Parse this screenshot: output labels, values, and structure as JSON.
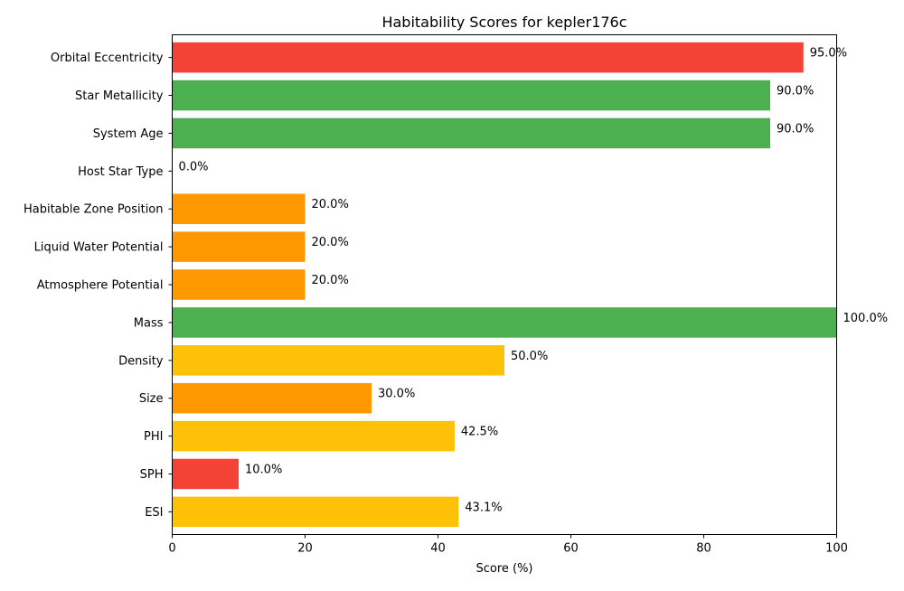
{
  "chart_data": {
    "type": "bar",
    "orientation": "horizontal",
    "title": "Habitability Scores for kepler176c",
    "xlabel": "Score (%)",
    "ylabel": "",
    "xlim": [
      0,
      100
    ],
    "xticks": [
      0,
      20,
      40,
      60,
      80,
      100
    ],
    "grid": false,
    "categories": [
      "ESI",
      "SPH",
      "PHI",
      "Size",
      "Density",
      "Mass",
      "Atmosphere Potential",
      "Liquid Water Potential",
      "Habitable Zone Position",
      "Host Star Type",
      "System Age",
      "Star Metallicity",
      "Orbital Eccentricity"
    ],
    "values": [
      43.1,
      10.0,
      42.5,
      30.0,
      50.0,
      100.0,
      20.0,
      20.0,
      20.0,
      0.0,
      90.0,
      90.0,
      95.0
    ],
    "value_labels": [
      "43.1%",
      "10.0%",
      "42.5%",
      "30.0%",
      "50.0%",
      "100.0%",
      "20.0%",
      "20.0%",
      "20.0%",
      "0.0%",
      "90.0%",
      "90.0%",
      "95.0%"
    ],
    "colors": [
      "#FFC107",
      "#F44336",
      "#FFC107",
      "#FF9800",
      "#FFC107",
      "#4CAF50",
      "#FF9800",
      "#FF9800",
      "#FF9800",
      "#F44336",
      "#4CAF50",
      "#4CAF50",
      "#F44336"
    ]
  }
}
